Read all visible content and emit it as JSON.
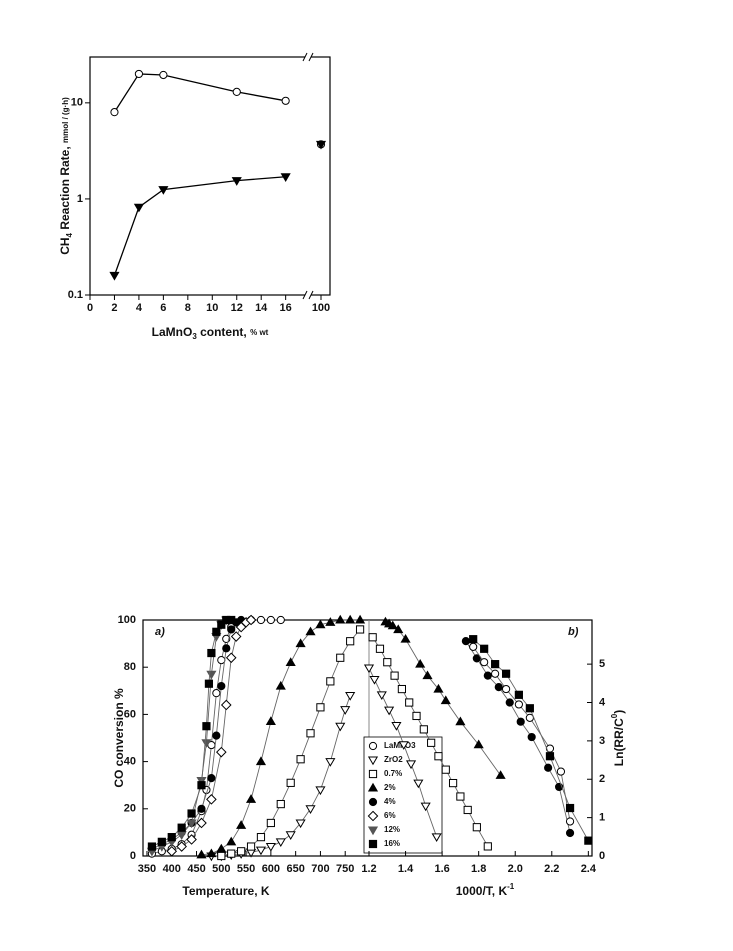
{
  "chart_data": [
    {
      "type": "line",
      "log_y": true,
      "xlabel": [
        "LaMnO",
        "3",
        " content, ",
        "% wt"
      ],
      "ylabel": [
        "CH",
        "4",
        " Reaction Rate, ",
        "mmol / (g·h)"
      ],
      "xlim": [
        0,
        101
      ],
      "xbreak": [
        17.5,
        99
      ],
      "xticks": [
        0,
        2,
        4,
        6,
        8,
        10,
        12,
        14,
        16,
        100
      ],
      "ylim": [
        0.1,
        30
      ],
      "yticks": [
        0.1,
        1,
        10
      ],
      "series": [
        {
          "marker": "circle",
          "filled": false,
          "color": "#000",
          "x": [
            2,
            4,
            6,
            12,
            16,
            100
          ],
          "values": [
            8,
            20,
            19.5,
            13,
            10.5,
            3.7
          ]
        },
        {
          "marker": "triangle-down",
          "filled": true,
          "color": "#000",
          "x": [
            2,
            4,
            6,
            12,
            16,
            100
          ],
          "values": [
            0.16,
            0.82,
            1.25,
            1.55,
            1.7,
            3.7
          ]
        }
      ]
    },
    {
      "type": "line",
      "annotation": "a)",
      "xlabel": "Temperature, K",
      "ylabel": "CO conversion %",
      "xlim": [
        342,
        798
      ],
      "xticks": [
        350,
        400,
        450,
        500,
        550,
        600,
        650,
        700,
        750
      ],
      "ylim": [
        0,
        100
      ],
      "yticks": [
        0,
        20,
        40,
        60,
        80,
        100
      ],
      "series": [
        {
          "name": "LaMnO3",
          "marker": "circle",
          "filled": false,
          "color": "#000",
          "x": [
            360,
            380,
            400,
            420,
            440,
            460,
            470,
            480,
            490,
            500,
            510,
            520,
            540,
            560,
            580,
            600,
            620
          ],
          "values": [
            1,
            2,
            3,
            5,
            9,
            19,
            28,
            47,
            69,
            83,
            92,
            97,
            99,
            100,
            100,
            100,
            100
          ]
        },
        {
          "name": "ZrO2",
          "marker": "triangle-down",
          "filled": false,
          "color": "#000",
          "x": [
            480,
            500,
            520,
            540,
            560,
            580,
            600,
            620,
            640,
            660,
            680,
            700,
            720,
            740,
            750,
            760
          ],
          "values": [
            0,
            0,
            0.5,
            1,
            1.5,
            2.5,
            4,
            6,
            9,
            14,
            20,
            28,
            40,
            55,
            62,
            68
          ]
        },
        {
          "name": "0.7%",
          "marker": "square",
          "filled": false,
          "color": "#000",
          "x": [
            500,
            520,
            540,
            560,
            580,
            600,
            620,
            640,
            660,
            680,
            700,
            720,
            740,
            760,
            780
          ],
          "values": [
            0,
            1,
            2,
            4,
            8,
            14,
            22,
            31,
            41,
            52,
            63,
            74,
            84,
            91,
            96
          ]
        },
        {
          "name": "2%",
          "marker": "triangle-up",
          "filled": true,
          "color": "#000",
          "x": [
            460,
            480,
            500,
            520,
            540,
            560,
            580,
            600,
            620,
            640,
            660,
            680,
            700,
            720,
            740,
            760,
            780
          ],
          "values": [
            0.5,
            1,
            3,
            6,
            13,
            24,
            40,
            57,
            72,
            82,
            90,
            95,
            98,
            99,
            100,
            100,
            100
          ]
        },
        {
          "name": "4%",
          "marker": "circle",
          "filled": true,
          "color": "#000",
          "x": [
            360,
            380,
            400,
            420,
            440,
            460,
            480,
            490,
            500,
            510,
            520,
            530,
            540
          ],
          "values": [
            3,
            5,
            7,
            10,
            14,
            20,
            33,
            51,
            72,
            88,
            96,
            99,
            100
          ]
        },
        {
          "name": "6%",
          "marker": "diamond",
          "filled": false,
          "color": "#000",
          "x": [
            400,
            420,
            440,
            460,
            480,
            500,
            510,
            520,
            530,
            540,
            550,
            560
          ],
          "values": [
            2,
            4,
            7,
            14,
            24,
            44,
            64,
            84,
            93,
            97,
            99,
            100
          ]
        },
        {
          "name": "12%",
          "marker": "triangle-down",
          "filled": true,
          "color": "#555",
          "x": [
            360,
            380,
            400,
            420,
            440,
            460,
            470,
            480,
            490,
            500,
            510
          ],
          "values": [
            2,
            4,
            6,
            9,
            14,
            32,
            48,
            77,
            93,
            98,
            100
          ]
        },
        {
          "name": "16%",
          "marker": "square",
          "filled": true,
          "color": "#000",
          "x": [
            360,
            380,
            400,
            420,
            440,
            460,
            470,
            475,
            480,
            490,
            500,
            510,
            520
          ],
          "values": [
            4,
            6,
            8,
            12,
            18,
            30,
            55,
            73,
            86,
            95,
            98,
            100,
            100
          ]
        }
      ]
    },
    {
      "type": "scatter",
      "annotation": "b)",
      "xlabel": [
        "1000/T, K",
        "-1"
      ],
      "y2label": [
        "Ln(RR/C",
        "0",
        ")"
      ],
      "xlim": [
        1.2,
        2.42
      ],
      "xticks": [
        1.2,
        1.4,
        1.6,
        1.8,
        {
          "value": 2,
          "label": "2.0"
        },
        2.2,
        2.4
      ],
      "y2lim": [
        0,
        6.15
      ],
      "y2ticks": [
        0,
        1,
        2,
        3,
        4,
        5
      ],
      "series": [
        {
          "axis": "y2",
          "marker": "triangle-down",
          "filled": false,
          "color": "#000",
          "x": [
            1.2,
            1.23,
            1.27,
            1.31,
            1.35,
            1.39,
            1.43,
            1.47,
            1.51,
            1.57
          ],
          "values": [
            4.9,
            4.6,
            4.2,
            3.8,
            3.4,
            2.9,
            2.4,
            1.9,
            1.3,
            0.5
          ]
        },
        {
          "axis": "y2",
          "marker": "square",
          "filled": false,
          "color": "#000",
          "x": [
            1.22,
            1.26,
            1.3,
            1.34,
            1.38,
            1.42,
            1.46,
            1.5,
            1.54,
            1.58,
            1.62,
            1.66,
            1.7,
            1.74,
            1.79,
            1.85
          ],
          "values": [
            5.7,
            5.4,
            5.05,
            4.7,
            4.35,
            4,
            3.65,
            3.3,
            2.95,
            2.6,
            2.25,
            1.9,
            1.55,
            1.2,
            0.75,
            0.25
          ]
        },
        {
          "axis": "y2",
          "marker": "triangle-up",
          "filled": true,
          "color": "#000",
          "x": [
            1.29,
            1.31,
            1.33,
            1.36,
            1.4,
            1.48,
            1.52,
            1.58,
            1.62,
            1.7,
            1.8,
            1.92
          ],
          "values": [
            6.1,
            6.05,
            6,
            5.9,
            5.65,
            5,
            4.7,
            4.35,
            4.05,
            3.5,
            2.9,
            2.1
          ]
        },
        {
          "axis": "y2",
          "marker": "circle",
          "filled": true,
          "color": "#000",
          "x": [
            1.73,
            1.79,
            1.85,
            1.91,
            1.97,
            2.03,
            2.09,
            2.18,
            2.24,
            2.3
          ],
          "values": [
            5.6,
            5.15,
            4.7,
            4.4,
            4,
            3.5,
            3.1,
            2.3,
            1.8,
            0.6
          ]
        },
        {
          "axis": "y2",
          "marker": "circle",
          "filled": false,
          "color": "#000",
          "x": [
            1.77,
            1.83,
            1.89,
            1.95,
            2.02,
            2.08,
            2.19,
            2.25,
            2.3
          ],
          "values": [
            5.45,
            5.05,
            4.75,
            4.35,
            3.95,
            3.6,
            2.8,
            2.2,
            0.9
          ]
        },
        {
          "axis": "y2",
          "marker": "square",
          "filled": true,
          "color": "#000",
          "x": [
            1.77,
            1.83,
            1.89,
            1.95,
            2.02,
            2.08,
            2.19,
            2.3,
            2.4
          ],
          "values": [
            5.65,
            5.4,
            5,
            4.75,
            4.2,
            3.85,
            2.6,
            1.25,
            0.4
          ]
        }
      ]
    }
  ]
}
